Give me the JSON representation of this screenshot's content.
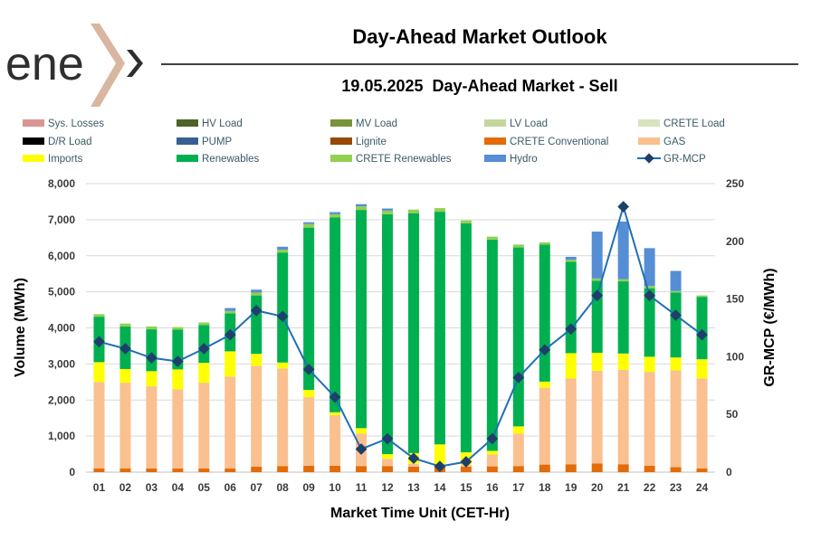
{
  "logo": {
    "text": "ene",
    "chevron_color": "#d8b6a0"
  },
  "header": {
    "title": "Day-Ahead Market Outlook"
  },
  "chart_data": {
    "type": "bar",
    "stacked": true,
    "subtitle": "19.05.2025  Day-Ahead Market - Sell",
    "xlabel": "Market Time Unit (CET-Hr)",
    "ylabel": "Volume (MWh)",
    "y2label": "GR-MCP (€/MWh)",
    "ylim": [
      0,
      8000
    ],
    "y2lim": [
      0,
      250
    ],
    "yticks": [
      "0",
      "1,000",
      "2,000",
      "3,000",
      "4,000",
      "5,000",
      "6,000",
      "7,000",
      "8,000"
    ],
    "y2ticks": [
      "0",
      "50",
      "100",
      "150",
      "200",
      "250"
    ],
    "categories": [
      "01",
      "02",
      "03",
      "04",
      "05",
      "06",
      "07",
      "08",
      "09",
      "10",
      "11",
      "12",
      "13",
      "14",
      "15",
      "16",
      "17",
      "18",
      "19",
      "20",
      "21",
      "22",
      "23",
      "24"
    ],
    "legend": [
      {
        "name": "Sys. Losses",
        "color": "#d99694",
        "kind": "bar"
      },
      {
        "name": "HV Load",
        "color": "#4f6228",
        "kind": "bar"
      },
      {
        "name": "MV Load",
        "color": "#77933c",
        "kind": "bar"
      },
      {
        "name": "LV Load",
        "color": "#c3d69b",
        "kind": "bar"
      },
      {
        "name": "CRETE Load",
        "color": "#d7e4bd",
        "kind": "bar"
      },
      {
        "name": "D/R Load",
        "color": "#000000",
        "kind": "bar"
      },
      {
        "name": "PUMP",
        "color": "#376092",
        "kind": "bar"
      },
      {
        "name": "Lignite",
        "color": "#984807",
        "kind": "bar"
      },
      {
        "name": "CRETE Conventional",
        "color": "#e36c09",
        "kind": "bar"
      },
      {
        "name": "GAS",
        "color": "#fac090",
        "kind": "bar"
      },
      {
        "name": "Imports",
        "color": "#ffff00",
        "kind": "bar"
      },
      {
        "name": "Renewables",
        "color": "#00b050",
        "kind": "bar"
      },
      {
        "name": "CRETE Renewables",
        "color": "#92d050",
        "kind": "bar"
      },
      {
        "name": "Hydro",
        "color": "#558ed5",
        "kind": "bar"
      },
      {
        "name": "GR-MCP",
        "color": "#1f6fb5",
        "kind": "line"
      }
    ],
    "series": [
      {
        "name": "CRETE Conventional",
        "color": "#e36c09",
        "values": [
          100,
          100,
          100,
          100,
          100,
          100,
          150,
          170,
          180,
          180,
          170,
          170,
          150,
          140,
          150,
          160,
          170,
          210,
          220,
          240,
          220,
          180,
          140,
          100
        ]
      },
      {
        "name": "GAS",
        "color": "#fac090",
        "values": [
          2400,
          2380,
          2280,
          2200,
          2380,
          2550,
          2800,
          2700,
          1900,
          1400,
          900,
          200,
          80,
          50,
          50,
          330,
          900,
          2130,
          2380,
          2570,
          2620,
          2600,
          2680,
          2500
        ]
      },
      {
        "name": "Imports",
        "color": "#ffff00",
        "values": [
          550,
          380,
          420,
          550,
          550,
          700,
          330,
          170,
          200,
          80,
          150,
          130,
          300,
          580,
          350,
          100,
          200,
          170,
          700,
          500,
          450,
          420,
          360,
          530
        ]
      },
      {
        "name": "Renewables",
        "color": "#00b050",
        "values": [
          1260,
          1180,
          1160,
          1100,
          1050,
          1050,
          1620,
          3050,
          4500,
          5400,
          6050,
          6650,
          6650,
          6450,
          6350,
          5860,
          4960,
          3800,
          2530,
          2000,
          2000,
          1900,
          1800,
          1730
        ]
      },
      {
        "name": "CRETE Renewables",
        "color": "#92d050",
        "values": [
          70,
          80,
          80,
          70,
          70,
          70,
          80,
          80,
          100,
          90,
          100,
          100,
          100,
          100,
          80,
          80,
          80,
          60,
          60,
          60,
          60,
          60,
          40,
          40
        ]
      },
      {
        "name": "Hydro",
        "color": "#558ed5",
        "values": [
          0,
          0,
          0,
          0,
          0,
          80,
          80,
          80,
          50,
          60,
          60,
          60,
          0,
          0,
          0,
          0,
          0,
          0,
          80,
          1300,
          1600,
          1050,
          560,
          0
        ]
      }
    ],
    "line": {
      "name": "GR-MCP",
      "color": "#1f6fb5",
      "values": [
        113,
        107,
        99,
        96,
        107,
        119,
        140,
        135,
        89,
        65,
        20,
        29,
        12,
        5,
        9,
        29,
        82,
        106,
        124,
        153,
        230,
        153,
        136,
        119
      ]
    }
  }
}
